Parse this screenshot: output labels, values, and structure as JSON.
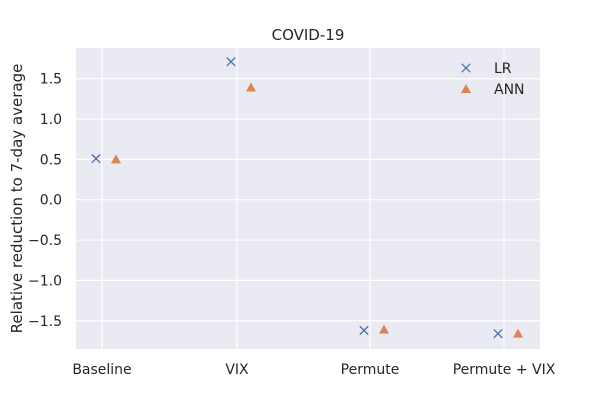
{
  "chart_data": {
    "type": "scatter",
    "title": "COVID-19",
    "xlabel": "",
    "ylabel": "Relative reduction to 7-day average",
    "categories": [
      "Baseline",
      "VIX",
      "Permute",
      "Permute + VIX"
    ],
    "ylim": [
      -1.85,
      1.88
    ],
    "yticks": [
      -1.5,
      -1.0,
      -0.5,
      0.0,
      0.5,
      1.0,
      1.5
    ],
    "ytick_labels": [
      "−1.5",
      "−1.0",
      "−0.5",
      "0.0",
      "0.5",
      "1.0",
      "1.5"
    ],
    "grid": true,
    "legend_position": "top-right",
    "background": "#eaeaf2",
    "series": [
      {
        "name": "LR",
        "marker": "x",
        "color": "#4c72b0",
        "values": [
          0.51,
          1.71,
          -1.62,
          -1.66
        ]
      },
      {
        "name": "ANN",
        "marker": "triangle",
        "color": "#dd8452",
        "values": [
          0.5,
          1.39,
          -1.61,
          -1.66
        ]
      }
    ]
  }
}
